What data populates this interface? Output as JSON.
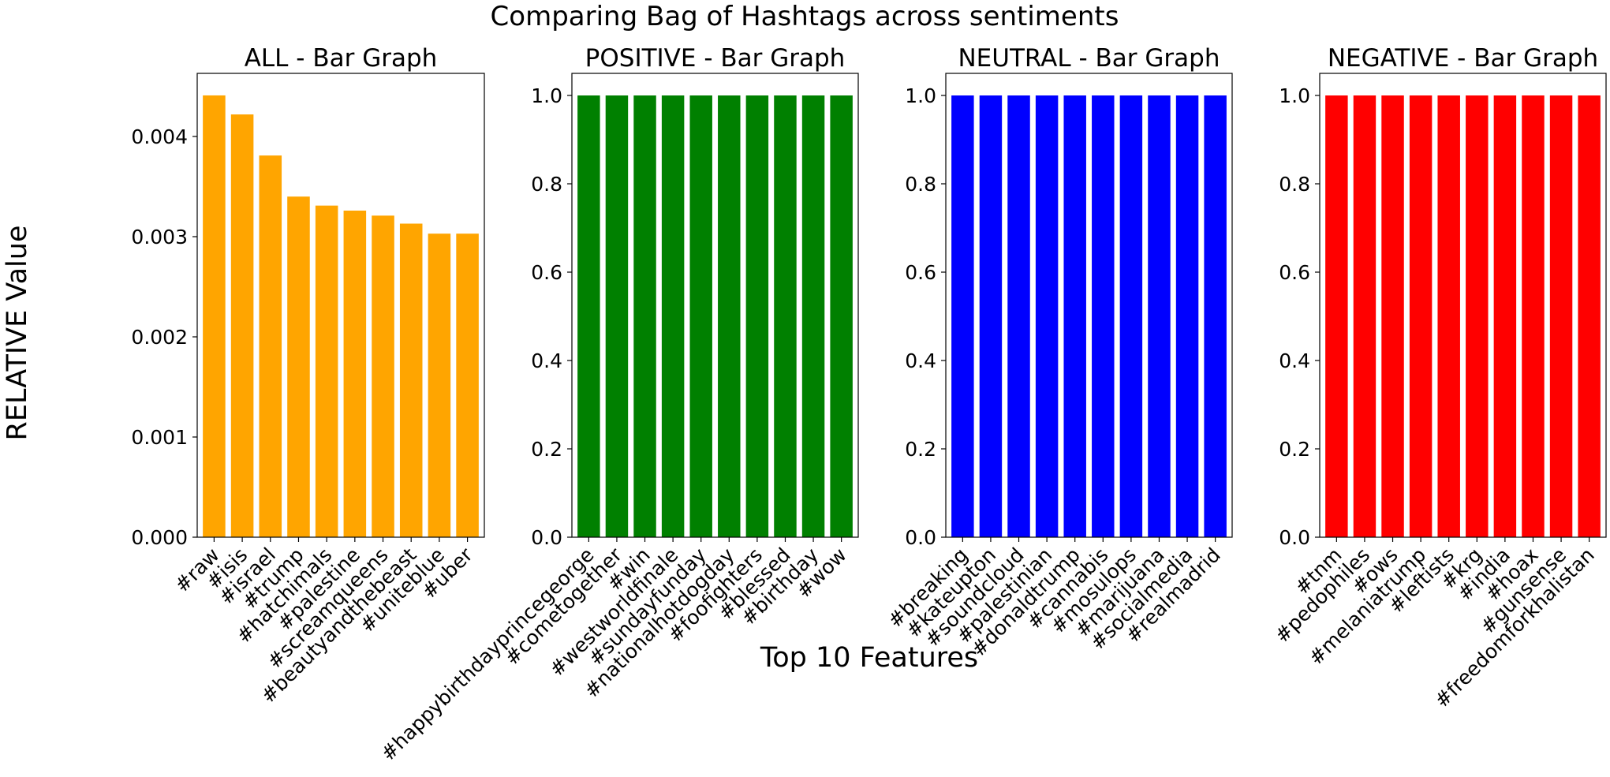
{
  "figure": {
    "suptitle": "Comparing Bag of Hashtags across sentiments",
    "ylabel": "RELATIVE Value",
    "xlabel": "Top 10 Features"
  },
  "chart_data": [
    {
      "type": "bar",
      "title": "ALL - Bar Graph",
      "color": "#ffa500",
      "categories": [
        "#raw",
        "#isis",
        "#israel",
        "#trump",
        "#hatchimals",
        "#palestine",
        "#screamqueens",
        "#beautyandthebeast",
        "#uniteblue",
        "#uber"
      ],
      "values": [
        0.00441,
        0.00422,
        0.00381,
        0.0034,
        0.00331,
        0.00326,
        0.00321,
        0.00313,
        0.00303,
        0.00303
      ],
      "ylim": [
        0,
        0.00463
      ],
      "yticks": [
        0.0,
        0.001,
        0.002,
        0.003,
        0.004
      ],
      "ytick_labels": [
        "0.000",
        "0.001",
        "0.002",
        "0.003",
        "0.004"
      ]
    },
    {
      "type": "bar",
      "title": "POSITIVE - Bar Graph",
      "color": "#008000",
      "categories": [
        "#happybirthdayprincegeorge",
        "#cometogether",
        "#win",
        "#westworldfinale",
        "#sundayfunday",
        "#nationalhotdogday",
        "#foofighters",
        "#blessed",
        "#birthday",
        "#wow"
      ],
      "values": [
        1,
        1,
        1,
        1,
        1,
        1,
        1,
        1,
        1,
        1
      ],
      "ylim": [
        0,
        1.05
      ],
      "yticks": [
        0.0,
        0.2,
        0.4,
        0.6,
        0.8,
        1.0
      ],
      "ytick_labels": [
        "0.0",
        "0.2",
        "0.4",
        "0.6",
        "0.8",
        "1.0"
      ]
    },
    {
      "type": "bar",
      "title": "NEUTRAL - Bar Graph",
      "color": "#0000ff",
      "categories": [
        "#breaking",
        "#kateupton",
        "#soundcloud",
        "#palestinian",
        "#donaldtrump",
        "#cannabis",
        "#mosulops",
        "#marijuana",
        "#socialmedia",
        "#realmadrid"
      ],
      "values": [
        1,
        1,
        1,
        1,
        1,
        1,
        1,
        1,
        1,
        1
      ],
      "ylim": [
        0,
        1.05
      ],
      "yticks": [
        0.0,
        0.2,
        0.4,
        0.6,
        0.8,
        1.0
      ],
      "ytick_labels": [
        "0.0",
        "0.2",
        "0.4",
        "0.6",
        "0.8",
        "1.0"
      ]
    },
    {
      "type": "bar",
      "title": "NEGATIVE - Bar Graph",
      "color": "#ff0000",
      "categories": [
        "#tnm",
        "#pedophiles",
        "#ows",
        "#melaniatrump",
        "#leftists",
        "#krg",
        "#india",
        "#hoax",
        "#gunsense",
        "#freedomforkhalistan"
      ],
      "values": [
        1,
        1,
        1,
        1,
        1,
        1,
        1,
        1,
        1,
        1
      ],
      "ylim": [
        0,
        1.05
      ],
      "yticks": [
        0.0,
        0.2,
        0.4,
        0.6,
        0.8,
        1.0
      ],
      "ytick_labels": [
        "0.0",
        "0.2",
        "0.4",
        "0.6",
        "0.8",
        "1.0"
      ]
    }
  ]
}
